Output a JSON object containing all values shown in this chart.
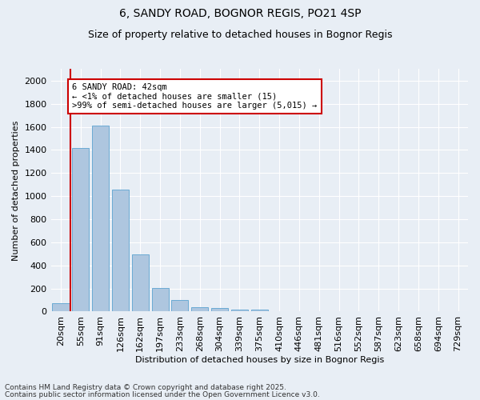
{
  "title1": "6, SANDY ROAD, BOGNOR REGIS, PO21 4SP",
  "title2": "Size of property relative to detached houses in Bognor Regis",
  "xlabel": "Distribution of detached houses by size in Bognor Regis",
  "ylabel": "Number of detached properties",
  "bins": [
    "20sqm",
    "55sqm",
    "91sqm",
    "126sqm",
    "162sqm",
    "197sqm",
    "233sqm",
    "268sqm",
    "304sqm",
    "339sqm",
    "375sqm",
    "410sqm",
    "446sqm",
    "481sqm",
    "516sqm",
    "552sqm",
    "587sqm",
    "623sqm",
    "658sqm",
    "694sqm",
    "729sqm"
  ],
  "values": [
    75,
    1420,
    1610,
    1055,
    495,
    205,
    100,
    40,
    30,
    20,
    20,
    0,
    0,
    0,
    0,
    0,
    0,
    0,
    0,
    0,
    0
  ],
  "bar_color": "#aec6df",
  "bar_edge_color": "#6aaad4",
  "red_line_color": "#cc0000",
  "annotation_text": "6 SANDY ROAD: 42sqm\n← <1% of detached houses are smaller (15)\n>99% of semi-detached houses are larger (5,015) →",
  "annotation_box_color": "#ffffff",
  "annotation_box_edge": "#cc0000",
  "ylim": [
    0,
    2100
  ],
  "yticks": [
    0,
    200,
    400,
    600,
    800,
    1000,
    1200,
    1400,
    1600,
    1800,
    2000
  ],
  "footer1": "Contains HM Land Registry data © Crown copyright and database right 2025.",
  "footer2": "Contains public sector information licensed under the Open Government Licence v3.0.",
  "bg_color": "#e8eef5",
  "plot_bg_color": "#e8eef5",
  "grid_color": "#ffffff",
  "title1_fontsize": 10,
  "title2_fontsize": 9,
  "xlabel_fontsize": 8,
  "ylabel_fontsize": 8,
  "tick_fontsize": 8,
  "annot_fontsize": 7.5,
  "footer_fontsize": 6.5
}
